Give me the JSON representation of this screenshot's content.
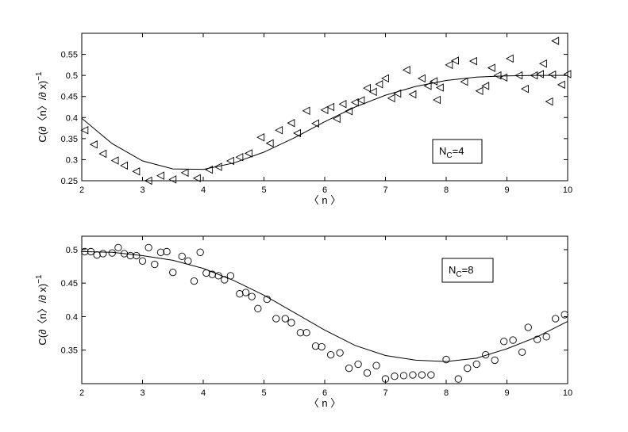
{
  "chart_data": [
    {
      "type": "scatter",
      "xlabel": "〈 n 〉",
      "ylabel": "C(∂〈n〉/∂ x)",
      "ylabel_sup": "−1",
      "annotation": {
        "main": "N",
        "sub": "C",
        "rest": "=4"
      },
      "xlim": [
        2,
        10
      ],
      "ylim": [
        0.25,
        0.6
      ],
      "xticks": [
        "2",
        "3",
        "4",
        "5",
        "6",
        "7",
        "8",
        "9",
        "10"
      ],
      "yticks": [
        "0.25",
        "0.3",
        "0.35",
        "0.4",
        "0.45",
        "0.5",
        "0.55"
      ],
      "marker": "triangle-left",
      "points": [
        [
          2.05,
          0.37
        ],
        [
          2.2,
          0.336
        ],
        [
          2.35,
          0.314
        ],
        [
          2.55,
          0.298
        ],
        [
          2.7,
          0.286
        ],
        [
          2.9,
          0.272
        ],
        [
          3.1,
          0.25
        ],
        [
          3.3,
          0.262
        ],
        [
          3.5,
          0.253
        ],
        [
          3.7,
          0.269
        ],
        [
          3.9,
          0.256
        ],
        [
          4.1,
          0.276
        ],
        [
          4.25,
          0.283
        ],
        [
          4.45,
          0.297
        ],
        [
          4.6,
          0.306
        ],
        [
          4.75,
          0.315
        ],
        [
          4.95,
          0.353
        ],
        [
          5.1,
          0.339
        ],
        [
          5.25,
          0.37
        ],
        [
          5.45,
          0.387
        ],
        [
          5.55,
          0.363
        ],
        [
          5.7,
          0.416
        ],
        [
          5.85,
          0.386
        ],
        [
          6.0,
          0.418
        ],
        [
          6.1,
          0.425
        ],
        [
          6.2,
          0.397
        ],
        [
          6.3,
          0.432
        ],
        [
          6.4,
          0.415
        ],
        [
          6.5,
          0.436
        ],
        [
          6.6,
          0.441
        ],
        [
          6.7,
          0.47
        ],
        [
          6.8,
          0.461
        ],
        [
          6.9,
          0.479
        ],
        [
          7.0,
          0.493
        ],
        [
          7.1,
          0.446
        ],
        [
          7.2,
          0.457
        ],
        [
          7.35,
          0.513
        ],
        [
          7.45,
          0.455
        ],
        [
          7.6,
          0.493
        ],
        [
          7.7,
          0.475
        ],
        [
          7.8,
          0.486
        ],
        [
          7.85,
          0.442
        ],
        [
          7.9,
          0.471
        ],
        [
          8.05,
          0.525
        ],
        [
          8.15,
          0.535
        ],
        [
          8.3,
          0.485
        ],
        [
          8.45,
          0.534
        ],
        [
          8.55,
          0.463
        ],
        [
          8.65,
          0.475
        ],
        [
          8.75,
          0.518
        ],
        [
          8.85,
          0.5
        ],
        [
          8.95,
          0.495
        ],
        [
          9.05,
          0.54
        ],
        [
          9.2,
          0.5
        ],
        [
          9.3,
          0.468
        ],
        [
          9.45,
          0.5
        ],
        [
          9.55,
          0.503
        ],
        [
          9.6,
          0.528
        ],
        [
          9.7,
          0.438
        ],
        [
          9.75,
          0.502
        ],
        [
          9.8,
          0.582
        ],
        [
          9.9,
          0.478
        ],
        [
          10.0,
          0.503
        ]
      ],
      "fit": [
        [
          2,
          0.398
        ],
        [
          2.5,
          0.338
        ],
        [
          3,
          0.297
        ],
        [
          3.5,
          0.278
        ],
        [
          4,
          0.277
        ],
        [
          4.5,
          0.292
        ],
        [
          5,
          0.318
        ],
        [
          5.5,
          0.352
        ],
        [
          6,
          0.39
        ],
        [
          6.5,
          0.425
        ],
        [
          7,
          0.453
        ],
        [
          7.5,
          0.474
        ],
        [
          8,
          0.488
        ],
        [
          8.5,
          0.496
        ],
        [
          9,
          0.499
        ],
        [
          9.5,
          0.5
        ],
        [
          10,
          0.5
        ]
      ]
    },
    {
      "type": "scatter",
      "xlabel": "〈 n 〉",
      "ylabel": "C(∂〈n〉/∂ x)",
      "ylabel_sup": "−1",
      "annotation": {
        "main": "N",
        "sub": "C",
        "rest": "=8"
      },
      "xlim": [
        2,
        10
      ],
      "ylim": [
        0.3,
        0.52
      ],
      "xticks": [
        "2",
        "3",
        "4",
        "5",
        "6",
        "7",
        "8",
        "9",
        "10"
      ],
      "yticks": [
        "0.35",
        "0.4",
        "0.45",
        "0.5"
      ],
      "marker": "circle",
      "points": [
        [
          2.05,
          0.497
        ],
        [
          2.15,
          0.497
        ],
        [
          2.25,
          0.492
        ],
        [
          2.35,
          0.494
        ],
        [
          2.5,
          0.495
        ],
        [
          2.6,
          0.503
        ],
        [
          2.7,
          0.494
        ],
        [
          2.8,
          0.491
        ],
        [
          2.9,
          0.491
        ],
        [
          3.0,
          0.483
        ],
        [
          3.1,
          0.503
        ],
        [
          3.2,
          0.478
        ],
        [
          3.3,
          0.496
        ],
        [
          3.4,
          0.497
        ],
        [
          3.5,
          0.466
        ],
        [
          3.65,
          0.49
        ],
        [
          3.75,
          0.483
        ],
        [
          3.85,
          0.453
        ],
        [
          3.95,
          0.496
        ],
        [
          4.05,
          0.465
        ],
        [
          4.15,
          0.463
        ],
        [
          4.25,
          0.461
        ],
        [
          4.35,
          0.455
        ],
        [
          4.45,
          0.461
        ],
        [
          4.6,
          0.434
        ],
        [
          4.7,
          0.436
        ],
        [
          4.8,
          0.43
        ],
        [
          4.9,
          0.412
        ],
        [
          5.05,
          0.426
        ],
        [
          5.2,
          0.397
        ],
        [
          5.35,
          0.397
        ],
        [
          5.45,
          0.391
        ],
        [
          5.6,
          0.376
        ],
        [
          5.7,
          0.376
        ],
        [
          5.85,
          0.356
        ],
        [
          5.95,
          0.355
        ],
        [
          6.1,
          0.343
        ],
        [
          6.25,
          0.346
        ],
        [
          6.4,
          0.323
        ],
        [
          6.55,
          0.329
        ],
        [
          6.7,
          0.316
        ],
        [
          6.85,
          0.327
        ],
        [
          7.0,
          0.307
        ],
        [
          7.15,
          0.311
        ],
        [
          7.3,
          0.312
        ],
        [
          7.45,
          0.313
        ],
        [
          7.6,
          0.313
        ],
        [
          7.75,
          0.313
        ],
        [
          8.0,
          0.336
        ],
        [
          8.2,
          0.307
        ],
        [
          8.35,
          0.323
        ],
        [
          8.5,
          0.329
        ],
        [
          8.65,
          0.343
        ],
        [
          8.8,
          0.335
        ],
        [
          8.95,
          0.363
        ],
        [
          9.1,
          0.365
        ],
        [
          9.25,
          0.347
        ],
        [
          9.35,
          0.384
        ],
        [
          9.5,
          0.366
        ],
        [
          9.65,
          0.37
        ],
        [
          9.8,
          0.397
        ],
        [
          9.95,
          0.403
        ]
      ],
      "fit": [
        [
          2,
          0.497
        ],
        [
          2.5,
          0.496
        ],
        [
          3,
          0.491
        ],
        [
          3.5,
          0.484
        ],
        [
          4,
          0.472
        ],
        [
          4.5,
          0.454
        ],
        [
          5,
          0.432
        ],
        [
          5.5,
          0.406
        ],
        [
          6,
          0.38
        ],
        [
          6.5,
          0.357
        ],
        [
          7,
          0.342
        ],
        [
          7.5,
          0.335
        ],
        [
          8,
          0.333
        ],
        [
          8.5,
          0.338
        ],
        [
          9,
          0.352
        ],
        [
          9.5,
          0.37
        ],
        [
          10,
          0.393
        ]
      ]
    }
  ]
}
